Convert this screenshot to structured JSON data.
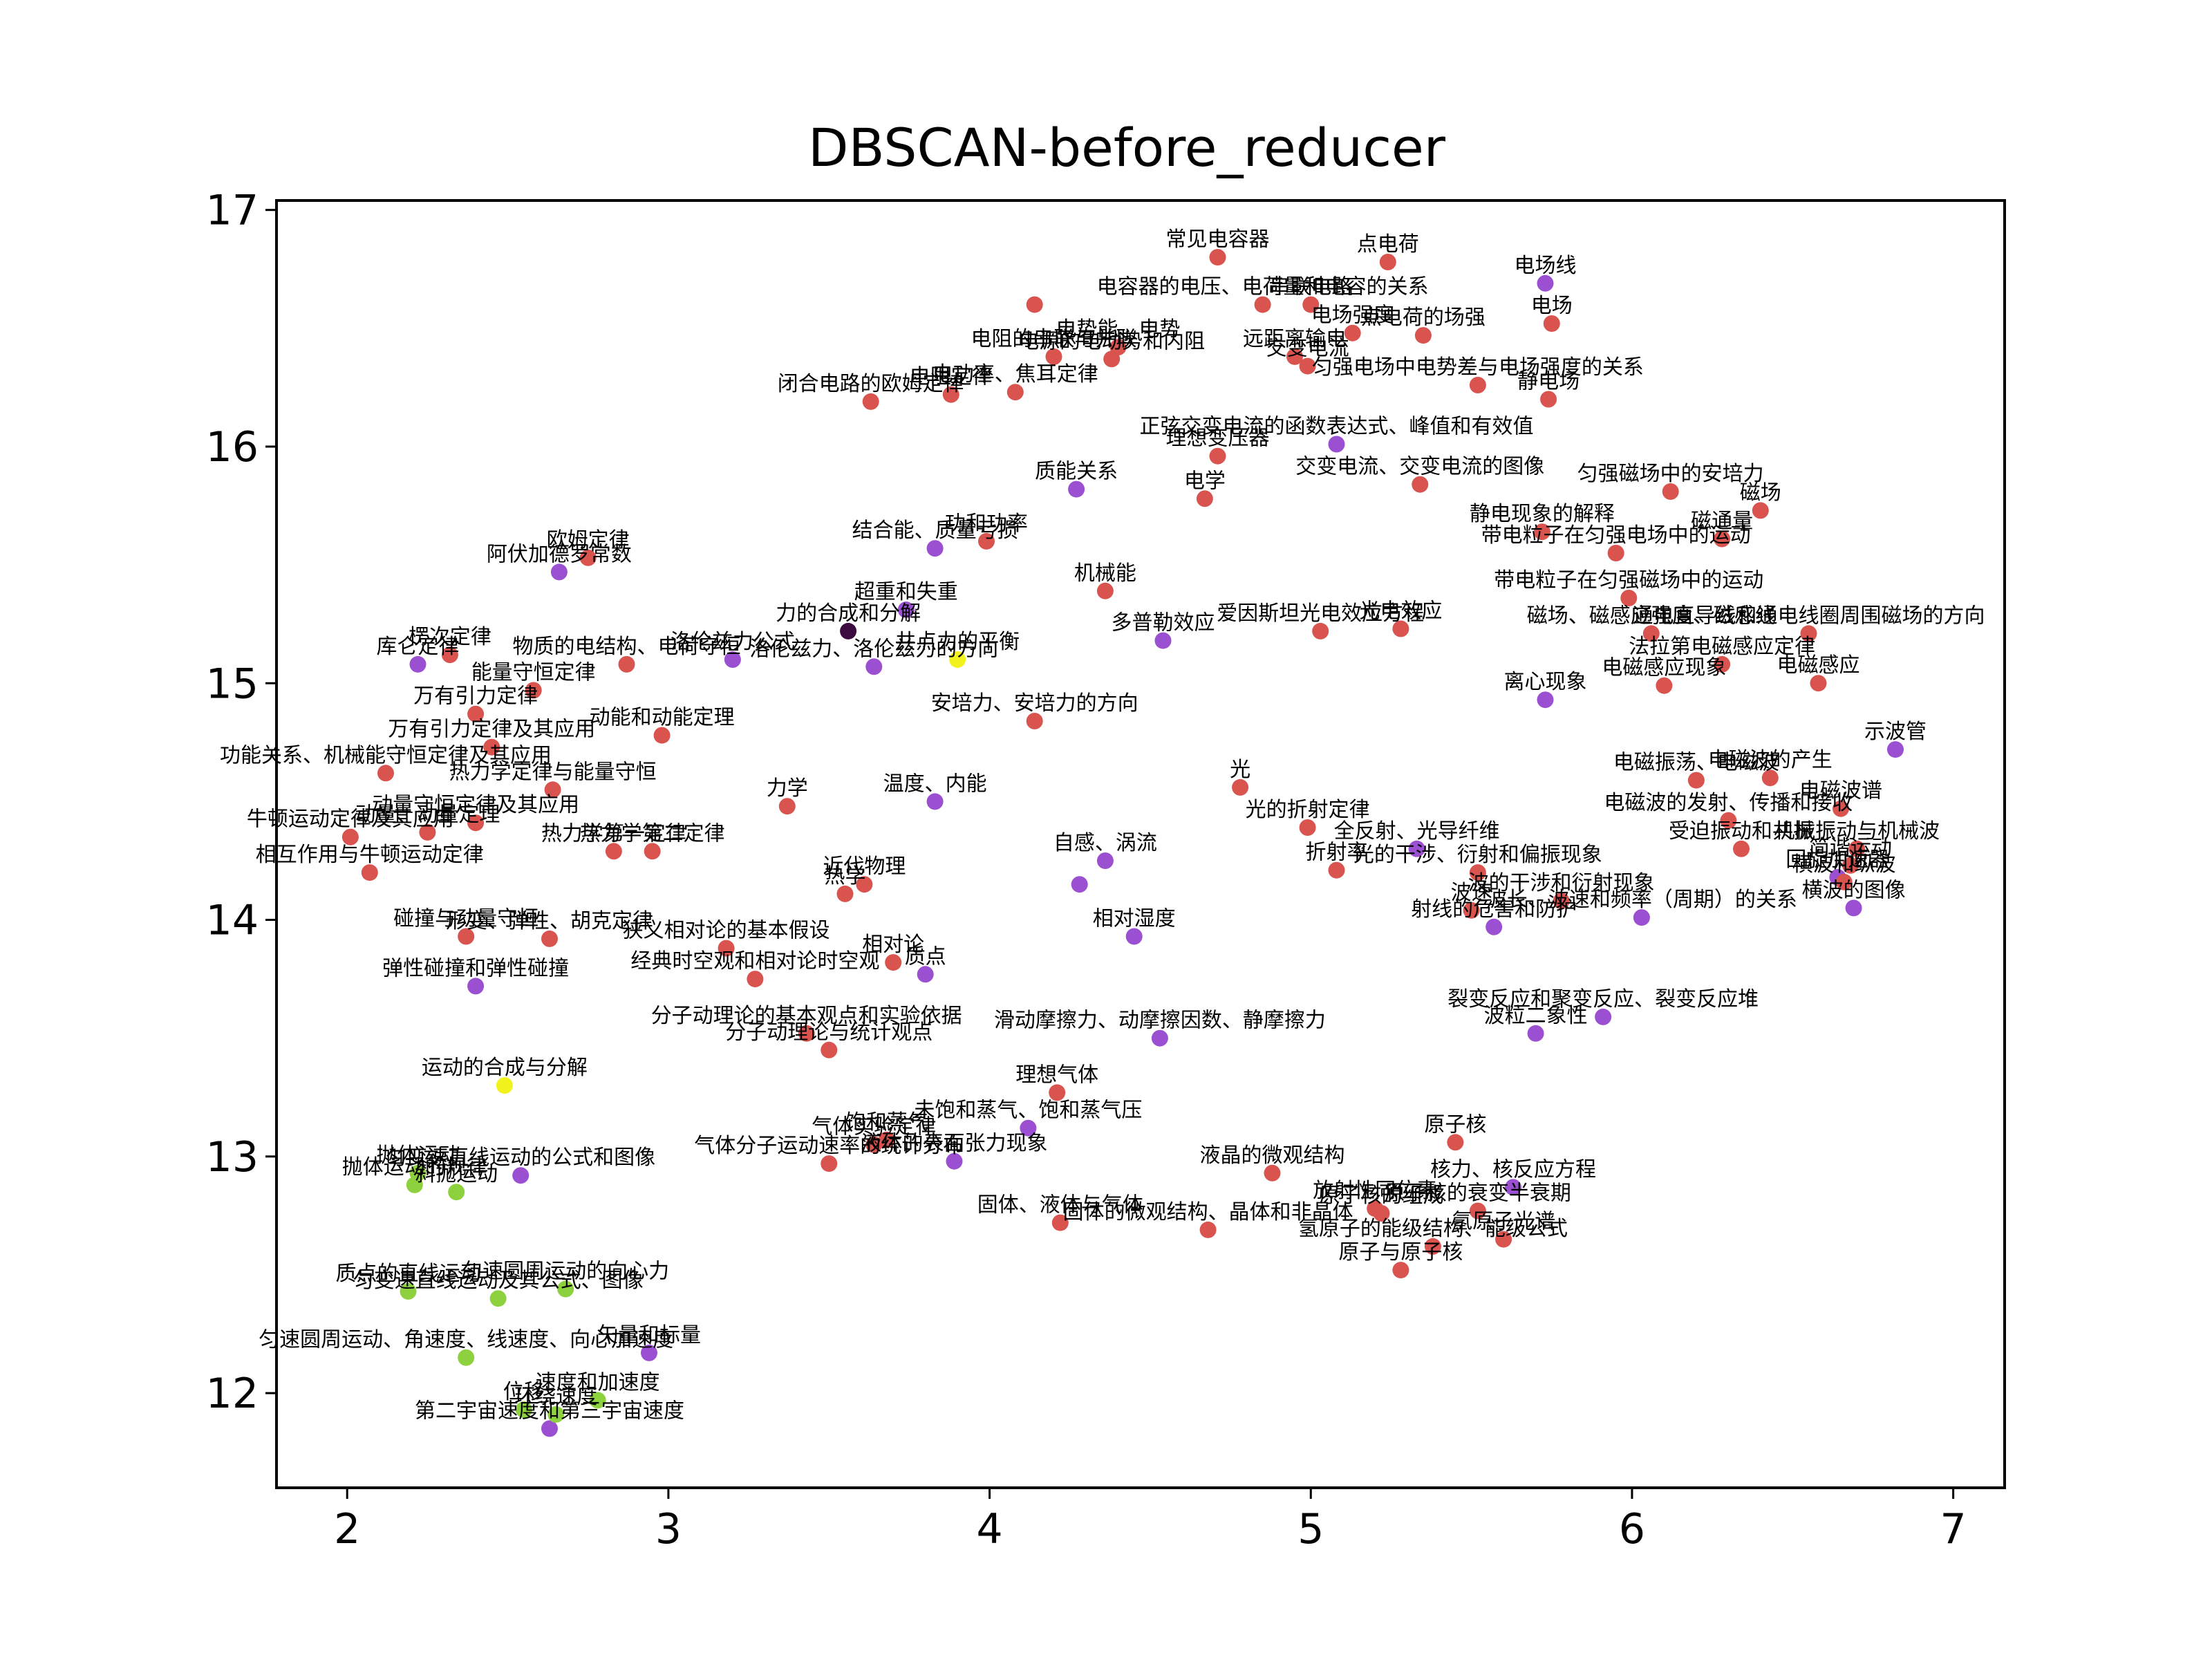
{
  "chart_data": {
    "type": "scatter",
    "title": "DBSCAN-before_reducer",
    "xlabel": "",
    "ylabel": "",
    "xlim": [
      1.78,
      7.16
    ],
    "ylim": [
      11.6,
      17.04
    ],
    "xticks": [
      2,
      3,
      4,
      5,
      6,
      7
    ],
    "yticks": [
      12,
      13,
      14,
      15,
      16,
      17
    ],
    "grid": false,
    "legend": "none",
    "colors": {
      "red": "#d9534f",
      "purple": "#9b4fd1",
      "green": "#8ed13f",
      "yellow": "#f2f21c",
      "dark": "#3b0a3f"
    },
    "points": [
      {
        "x": 4.71,
        "y": 16.8,
        "label": "常见电容器",
        "c": "red"
      },
      {
        "x": 5.24,
        "y": 16.78,
        "label": "点电荷",
        "c": "red"
      },
      {
        "x": 5.73,
        "y": 16.69,
        "label": "电场线",
        "c": "purple"
      },
      {
        "x": 4.85,
        "y": 16.6,
        "label": "电容器的电压、电荷量和电容的关系",
        "c": "red"
      },
      {
        "x": 5.0,
        "y": 16.6,
        "label": "串联电路",
        "c": "red"
      },
      {
        "x": 4.14,
        "y": 16.6,
        "label": "",
        "c": "red"
      },
      {
        "x": 5.75,
        "y": 16.52,
        "label": "电场",
        "c": "red"
      },
      {
        "x": 5.35,
        "y": 16.47,
        "label": "点电荷的场强",
        "c": "red"
      },
      {
        "x": 5.13,
        "y": 16.48,
        "label": "电场强度",
        "c": "red"
      },
      {
        "x": 4.4,
        "y": 16.42,
        "label": "电势能、电势",
        "c": "red"
      },
      {
        "x": 4.95,
        "y": 16.38,
        "label": "远距离输电",
        "c": "red"
      },
      {
        "x": 4.2,
        "y": 16.38,
        "label": "电阻的串联与并联",
        "c": "red"
      },
      {
        "x": 4.38,
        "y": 16.37,
        "label": "电源的电动势和内阻",
        "c": "red"
      },
      {
        "x": 4.99,
        "y": 16.34,
        "label": "交变电流",
        "c": "red"
      },
      {
        "x": 5.52,
        "y": 16.26,
        "label": "匀强电场中电势差与电场强度的关系",
        "c": "red"
      },
      {
        "x": 5.74,
        "y": 16.2,
        "label": "静电场",
        "c": "red"
      },
      {
        "x": 4.08,
        "y": 16.23,
        "label": "电功率、焦耳定律",
        "c": "red"
      },
      {
        "x": 3.63,
        "y": 16.19,
        "label": "闭合电路的欧姆定律",
        "c": "red"
      },
      {
        "x": 3.88,
        "y": 16.22,
        "label": "电阻定律",
        "c": "red"
      },
      {
        "x": 5.08,
        "y": 16.01,
        "label": "正弦交变电流的函数表达式、峰值和有效值",
        "c": "purple"
      },
      {
        "x": 4.71,
        "y": 15.96,
        "label": "理想变压器",
        "c": "red"
      },
      {
        "x": 5.34,
        "y": 15.84,
        "label": "交变电流、交变电流的图像",
        "c": "red"
      },
      {
        "x": 6.12,
        "y": 15.81,
        "label": "匀强磁场中的安培力",
        "c": "red"
      },
      {
        "x": 4.27,
        "y": 15.82,
        "label": "质能关系",
        "c": "purple"
      },
      {
        "x": 4.67,
        "y": 15.78,
        "label": "电学",
        "c": "red"
      },
      {
        "x": 6.4,
        "y": 15.73,
        "label": "磁场",
        "c": "red"
      },
      {
        "x": 5.72,
        "y": 15.64,
        "label": "静电现象的解释",
        "c": "red"
      },
      {
        "x": 6.28,
        "y": 15.61,
        "label": "磁通量",
        "c": "red"
      },
      {
        "x": 5.95,
        "y": 15.55,
        "label": "带电粒子在匀强电场中的运动",
        "c": "red"
      },
      {
        "x": 3.99,
        "y": 15.6,
        "label": "功和功率",
        "c": "red"
      },
      {
        "x": 3.83,
        "y": 15.57,
        "label": "结合能、质量亏损",
        "c": "purple"
      },
      {
        "x": 4.36,
        "y": 15.39,
        "label": "机械能",
        "c": "red"
      },
      {
        "x": 5.99,
        "y": 15.36,
        "label": "带电粒子在匀强磁场中的运动",
        "c": "red"
      },
      {
        "x": 3.74,
        "y": 15.31,
        "label": "超重和失重",
        "c": "purple"
      },
      {
        "x": 5.03,
        "y": 15.22,
        "label": "爱因斯坦光电效应方程",
        "c": "red"
      },
      {
        "x": 5.28,
        "y": 15.23,
        "label": "光电效应",
        "c": "red"
      },
      {
        "x": 4.54,
        "y": 15.18,
        "label": "多普勒效应",
        "c": "purple"
      },
      {
        "x": 6.06,
        "y": 15.21,
        "label": "磁场、磁感应强度、磁感线",
        "c": "red"
      },
      {
        "x": 6.55,
        "y": 15.21,
        "label": "通电直导线和通电线圈周围磁场的方向",
        "c": "red"
      },
      {
        "x": 6.28,
        "y": 15.08,
        "label": "法拉第电磁感应定律",
        "c": "red"
      },
      {
        "x": 3.56,
        "y": 15.22,
        "label": "力的合成和分解",
        "c": "dark"
      },
      {
        "x": 2.32,
        "y": 15.12,
        "label": "楞次定律",
        "c": "red"
      },
      {
        "x": 2.22,
        "y": 15.08,
        "label": "库仑定律",
        "c": "purple"
      },
      {
        "x": 2.87,
        "y": 15.08,
        "label": "物质的电结构、电荷守恒",
        "c": "red"
      },
      {
        "x": 3.2,
        "y": 15.1,
        "label": "洛伦兹力公式",
        "c": "purple"
      },
      {
        "x": 3.64,
        "y": 15.07,
        "label": "洛伦兹力、洛伦兹力的方向",
        "c": "purple"
      },
      {
        "x": 3.9,
        "y": 15.1,
        "label": "共点力的平衡",
        "c": "yellow"
      },
      {
        "x": 6.1,
        "y": 14.99,
        "label": "电磁感应现象",
        "c": "red"
      },
      {
        "x": 6.58,
        "y": 15.0,
        "label": "电磁感应",
        "c": "red"
      },
      {
        "x": 5.73,
        "y": 14.93,
        "label": "离心现象",
        "c": "purple"
      },
      {
        "x": 2.66,
        "y": 15.47,
        "label": "阿伏加德罗常数",
        "c": "purple"
      },
      {
        "x": 2.75,
        "y": 15.53,
        "label": "欧姆定律",
        "c": "red"
      },
      {
        "x": 2.58,
        "y": 14.97,
        "label": "能量守恒定律",
        "c": "red"
      },
      {
        "x": 2.4,
        "y": 14.87,
        "label": "万有引力定律",
        "c": "red"
      },
      {
        "x": 4.14,
        "y": 14.84,
        "label": "安培力、安培力的方向",
        "c": "red"
      },
      {
        "x": 2.98,
        "y": 14.78,
        "label": "动能和动能定理",
        "c": "red"
      },
      {
        "x": 2.45,
        "y": 14.73,
        "label": "万有引力定律及其应用",
        "c": "red"
      },
      {
        "x": 6.82,
        "y": 14.72,
        "label": "示波管",
        "c": "purple"
      },
      {
        "x": 2.12,
        "y": 14.62,
        "label": "功能关系、机械能守恒定律及其应用",
        "c": "red"
      },
      {
        "x": 2.64,
        "y": 14.55,
        "label": "热力学定律与能量守恒",
        "c": "red"
      },
      {
        "x": 6.2,
        "y": 14.59,
        "label": "电磁振荡、电磁波",
        "c": "red"
      },
      {
        "x": 6.43,
        "y": 14.6,
        "label": "电磁波的产生",
        "c": "red"
      },
      {
        "x": 4.78,
        "y": 14.56,
        "label": "光",
        "c": "red"
      },
      {
        "x": 3.37,
        "y": 14.48,
        "label": "力学",
        "c": "red"
      },
      {
        "x": 3.83,
        "y": 14.5,
        "label": "温度、内能",
        "c": "purple"
      },
      {
        "x": 6.65,
        "y": 14.47,
        "label": "电磁波谱",
        "c": "red"
      },
      {
        "x": 6.3,
        "y": 14.42,
        "label": "电磁波的发射、传播和接收",
        "c": "red"
      },
      {
        "x": 4.99,
        "y": 14.39,
        "label": "光的折射定律",
        "c": "red"
      },
      {
        "x": 2.4,
        "y": 14.41,
        "label": "动量守恒定律及其应用",
        "c": "red"
      },
      {
        "x": 2.01,
        "y": 14.35,
        "label": "牛顿运动定律及其应用",
        "c": "red"
      },
      {
        "x": 2.25,
        "y": 14.37,
        "label": "动量、动量定理",
        "c": "red"
      },
      {
        "x": 5.33,
        "y": 14.3,
        "label": "全反射、光导纤维",
        "c": "purple"
      },
      {
        "x": 6.34,
        "y": 14.3,
        "label": "受迫振动和共振",
        "c": "red"
      },
      {
        "x": 6.7,
        "y": 14.3,
        "label": "机械振动与机械波",
        "c": "red"
      },
      {
        "x": 2.83,
        "y": 14.29,
        "label": "热力学第一定律",
        "c": "red"
      },
      {
        "x": 2.95,
        "y": 14.29,
        "label": "热力学第二定律",
        "c": "red"
      },
      {
        "x": 4.36,
        "y": 14.25,
        "label": "自感、涡流",
        "c": "purple"
      },
      {
        "x": 6.68,
        "y": 14.23,
        "label": "简谐运动",
        "c": "red"
      },
      {
        "x": 5.08,
        "y": 14.21,
        "label": "折射率",
        "c": "red"
      },
      {
        "x": 5.52,
        "y": 14.2,
        "label": "光的干涉、衍射和偏振现象",
        "c": "red"
      },
      {
        "x": 6.64,
        "y": 14.18,
        "label": "回旋加速器",
        "c": "purple"
      },
      {
        "x": 6.66,
        "y": 14.16,
        "label": "横波和纵波",
        "c": "red"
      },
      {
        "x": 2.07,
        "y": 14.2,
        "label": "相互作用与牛顿运动定律",
        "c": "red"
      },
      {
        "x": 3.61,
        "y": 14.15,
        "label": "近代物理",
        "c": "red"
      },
      {
        "x": 4.28,
        "y": 14.15,
        "label": "",
        "c": "purple"
      },
      {
        "x": 3.55,
        "y": 14.11,
        "label": "热学",
        "c": "red"
      },
      {
        "x": 5.78,
        "y": 14.08,
        "label": "波的干涉和衍射现象",
        "c": "red"
      },
      {
        "x": 6.03,
        "y": 14.01,
        "label": "波长、波速和频率（周期）的关系",
        "c": "purple"
      },
      {
        "x": 6.69,
        "y": 14.05,
        "label": "横波的图像",
        "c": "purple"
      },
      {
        "x": 5.57,
        "y": 13.97,
        "label": "射线的危害和防护",
        "c": "purple"
      },
      {
        "x": 5.5,
        "y": 14.04,
        "label": "波速",
        "c": "red"
      },
      {
        "x": 2.37,
        "y": 13.93,
        "label": "碰撞与动量守恒",
        "c": "red"
      },
      {
        "x": 2.63,
        "y": 13.92,
        "label": "形变、弹性、胡克定律",
        "c": "red"
      },
      {
        "x": 4.45,
        "y": 13.93,
        "label": "相对湿度",
        "c": "purple"
      },
      {
        "x": 3.18,
        "y": 13.88,
        "label": "狭义相对论的基本假设",
        "c": "red"
      },
      {
        "x": 3.7,
        "y": 13.82,
        "label": "相对论",
        "c": "red"
      },
      {
        "x": 3.8,
        "y": 13.77,
        "label": "质点",
        "c": "purple"
      },
      {
        "x": 3.27,
        "y": 13.75,
        "label": "经典时空观和相对论时空观",
        "c": "red"
      },
      {
        "x": 2.4,
        "y": 13.72,
        "label": "弹性碰撞和弹性碰撞",
        "c": "purple"
      },
      {
        "x": 5.91,
        "y": 13.59,
        "label": "裂变反应和聚变反应、裂变反应堆",
        "c": "purple"
      },
      {
        "x": 5.7,
        "y": 13.52,
        "label": "波粒二象性",
        "c": "purple"
      },
      {
        "x": 4.53,
        "y": 13.5,
        "label": "滑动摩擦力、动摩擦因数、静摩擦力",
        "c": "purple"
      },
      {
        "x": 3.43,
        "y": 13.52,
        "label": "分子动理论的基本观点和实验依据",
        "c": "red"
      },
      {
        "x": 3.5,
        "y": 13.45,
        "label": "分子动理论与统计观点",
        "c": "red"
      },
      {
        "x": 2.49,
        "y": 13.3,
        "label": "运动的合成与分解",
        "c": "yellow"
      },
      {
        "x": 4.21,
        "y": 13.27,
        "label": "理想气体",
        "c": "red"
      },
      {
        "x": 4.12,
        "y": 13.12,
        "label": "未饱和蒸气、饱和蒸气压",
        "c": "purple"
      },
      {
        "x": 3.68,
        "y": 13.07,
        "label": "饱和蒸气",
        "c": "red"
      },
      {
        "x": 3.64,
        "y": 13.05,
        "label": "气体实验定律",
        "c": "red"
      },
      {
        "x": 5.45,
        "y": 13.06,
        "label": "原子核",
        "c": "red"
      },
      {
        "x": 3.5,
        "y": 12.97,
        "label": "气体分子运动速率的统计分布",
        "c": "red"
      },
      {
        "x": 3.89,
        "y": 12.98,
        "label": "液体的表面张力现象",
        "c": "purple"
      },
      {
        "x": 4.88,
        "y": 12.93,
        "label": "液晶的微观结构",
        "c": "red"
      },
      {
        "x": 2.22,
        "y": 12.93,
        "label": "抛体运动",
        "c": "green"
      },
      {
        "x": 2.54,
        "y": 12.92,
        "label": "匀变速直线运动的公式和图像",
        "c": "purple"
      },
      {
        "x": 2.21,
        "y": 12.88,
        "label": "抛体运动的规律",
        "c": "green"
      },
      {
        "x": 2.34,
        "y": 12.85,
        "label": "斜抛运动",
        "c": "green"
      },
      {
        "x": 5.63,
        "y": 12.87,
        "label": "核力、核反应方程",
        "c": "purple"
      },
      {
        "x": 5.2,
        "y": 12.78,
        "label": "放射性同位素",
        "c": "red"
      },
      {
        "x": 5.52,
        "y": 12.77,
        "label": "原子核的衰变半衰期",
        "c": "red"
      },
      {
        "x": 5.22,
        "y": 12.76,
        "label": "原子核的组成",
        "c": "red"
      },
      {
        "x": 4.22,
        "y": 12.72,
        "label": "固体、液体与气体",
        "c": "red"
      },
      {
        "x": 4.68,
        "y": 12.69,
        "label": "固体的微观结构、晶体和非晶体",
        "c": "red"
      },
      {
        "x": 5.6,
        "y": 12.65,
        "label": "氢原子光谱",
        "c": "red"
      },
      {
        "x": 5.38,
        "y": 12.62,
        "label": "氢原子的能级结构、能级公式",
        "c": "red"
      },
      {
        "x": 5.28,
        "y": 12.52,
        "label": "原子与原子核",
        "c": "red"
      },
      {
        "x": 2.19,
        "y": 12.43,
        "label": "质点的直线运动",
        "c": "green"
      },
      {
        "x": 2.47,
        "y": 12.4,
        "label": "匀变速直线运动及其公式、图像",
        "c": "green"
      },
      {
        "x": 2.68,
        "y": 12.44,
        "label": "匀速圆周运动的向心力",
        "c": "green"
      },
      {
        "x": 2.37,
        "y": 12.15,
        "label": "匀速圆周运动、角速度、线速度、向心加速度",
        "c": "green"
      },
      {
        "x": 2.94,
        "y": 12.17,
        "label": "矢量和标量",
        "c": "purple"
      },
      {
        "x": 2.78,
        "y": 11.97,
        "label": "速度和加速度",
        "c": "green"
      },
      {
        "x": 2.55,
        "y": 11.93,
        "label": "位移",
        "c": "green"
      },
      {
        "x": 2.63,
        "y": 11.85,
        "label": "第二宇宙速度和第三宇宙速度",
        "c": "purple"
      },
      {
        "x": 2.65,
        "y": 11.91,
        "label": "环绕速度",
        "c": "green"
      }
    ]
  }
}
